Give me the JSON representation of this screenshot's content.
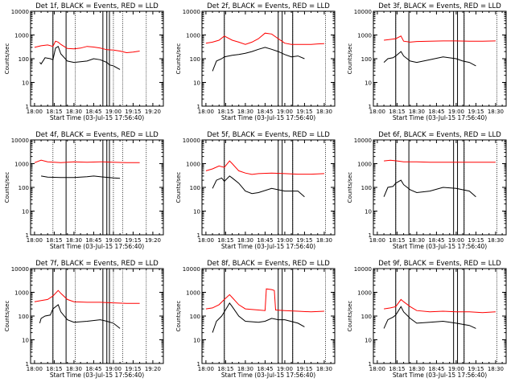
{
  "figure": {
    "title_template": "Det {det}, BLACK = Events, RED = LLD",
    "ylabel": "Counts/sec",
    "xlabel": "Start Time (03-Jul-15 17:56:40)",
    "colors": {
      "events": "#000000",
      "lld": "#ff0000",
      "frame": "#000000"
    }
  },
  "chart_data": [
    {
      "type": "line",
      "detector": "1f",
      "title": "Det 1f, BLACK = Events, RED = LLD",
      "xlabel": "Start Time (03-Jul-15 17:56:40)",
      "ylabel": "Counts/sec",
      "ylog": true,
      "ylim": [
        1,
        10000
      ],
      "x_ticks": [
        "18:00",
        "18:15",
        "18:30",
        "18:45",
        "19:00",
        "19:15",
        "19:20"
      ],
      "y_ticks": [
        "1",
        "10",
        "100",
        "1000",
        "10000"
      ],
      "vlines_solid": [
        "18:14",
        "18:24",
        "18:52",
        "18:55",
        "18:57"
      ],
      "vlines_dotted": [
        "18:14",
        "18:31",
        "18:57",
        "19:00",
        "19:07",
        "19:25"
      ],
      "series": [
        {
          "name": "LLD",
          "x": [
            "18:00",
            "18:05",
            "18:10",
            "18:14",
            "18:16",
            "18:18",
            "18:20",
            "18:25",
            "18:30",
            "18:35",
            "18:40",
            "18:45",
            "18:50",
            "18:55",
            "19:00",
            "19:05",
            "19:10",
            "19:15",
            "19:20"
          ],
          "y": [
            300,
            350,
            380,
            330,
            550,
            500,
            400,
            270,
            260,
            280,
            330,
            310,
            280,
            240,
            230,
            210,
            180,
            190,
            210
          ]
        },
        {
          "name": "Events",
          "x": [
            "18:04",
            "18:05",
            "18:08",
            "18:12",
            "18:14",
            "18:16",
            "18:18",
            "18:20",
            "18:25",
            "18:30",
            "18:35",
            "18:40",
            "18:45",
            "18:50",
            "18:55",
            "18:57",
            "19:00",
            "19:05"
          ],
          "y": [
            70,
            60,
            110,
            100,
            90,
            280,
            330,
            160,
            80,
            70,
            75,
            80,
            100,
            90,
            70,
            55,
            50,
            35
          ]
        }
      ]
    },
    {
      "type": "line",
      "detector": "2f",
      "title": "Det 2f, BLACK = Events, RED = LLD",
      "xlabel": "Start Time (03-Jul-15 17:56:40)",
      "ylabel": "Counts/sec",
      "ylog": true,
      "ylim": [
        1,
        10000
      ],
      "x_ticks": [
        "18:00",
        "18:15",
        "18:30",
        "18:45",
        "19:00",
        "19:15",
        "18:30"
      ],
      "y_ticks": [
        "1",
        "10",
        "100",
        "1000",
        "10000"
      ],
      "vlines_solid": [
        "18:14",
        "18:55",
        "18:58",
        "19:06"
      ],
      "vlines_dotted": [
        "18:14",
        "19:06",
        "19:31"
      ],
      "series": [
        {
          "name": "LLD",
          "x": [
            "18:00",
            "18:05",
            "18:10",
            "18:14",
            "18:20",
            "18:25",
            "18:30",
            "18:35",
            "18:40",
            "18:45",
            "18:50",
            "18:55",
            "19:00",
            "19:05",
            "19:10",
            "19:15",
            "19:20",
            "19:25",
            "19:30"
          ],
          "y": [
            450,
            500,
            600,
            900,
            600,
            500,
            400,
            500,
            700,
            1200,
            1100,
            700,
            450,
            400,
            400,
            400,
            400,
            420,
            430
          ]
        },
        {
          "name": "Events",
          "x": [
            "18:05",
            "18:08",
            "18:12",
            "18:14",
            "18:20",
            "18:25",
            "18:30",
            "18:35",
            "18:40",
            "18:45",
            "18:50",
            "18:55",
            "19:00",
            "19:05",
            "19:10",
            "19:15"
          ],
          "y": [
            30,
            80,
            100,
            120,
            140,
            150,
            170,
            200,
            250,
            300,
            250,
            200,
            150,
            120,
            130,
            100
          ]
        }
      ]
    },
    {
      "type": "line",
      "detector": "3f",
      "title": "Det 3f, BLACK = Events, RED = LLD",
      "xlabel": "Start Time (03-Jul-15 17:56:40)",
      "ylabel": "Counts/sec",
      "ylog": true,
      "ylim": [
        1,
        10000
      ],
      "x_ticks": [
        "18:00",
        "18:15",
        "18:30",
        "18:45",
        "19:00",
        "19:15",
        "18:30"
      ],
      "y_ticks": [
        "1",
        "10",
        "100",
        "1000",
        "10000"
      ],
      "vlines_solid": [
        "18:14",
        "18:24",
        "18:58",
        "19:01",
        "19:06"
      ],
      "vlines_dotted": [
        "18:14",
        "19:06",
        "19:31"
      ],
      "series": [
        {
          "name": "LLD",
          "x": [
            "18:05",
            "18:10",
            "18:14",
            "18:18",
            "18:20",
            "18:25",
            "18:30",
            "18:40",
            "18:50",
            "19:00",
            "19:10",
            "19:20",
            "19:30"
          ],
          "y": [
            600,
            650,
            700,
            900,
            550,
            500,
            530,
            550,
            560,
            560,
            550,
            550,
            560
          ]
        },
        {
          "name": "Events",
          "x": [
            "18:05",
            "18:08",
            "18:12",
            "18:14",
            "18:18",
            "18:20",
            "18:25",
            "18:30",
            "18:40",
            "18:50",
            "19:00",
            "19:05",
            "19:10",
            "19:15"
          ],
          "y": [
            70,
            100,
            110,
            130,
            200,
            130,
            80,
            70,
            90,
            120,
            100,
            80,
            70,
            50
          ]
        }
      ]
    },
    {
      "type": "line",
      "detector": "4f",
      "title": "Det 4f, BLACK = Events, RED = LLD",
      "xlabel": "Start Time (03-Jul-15 17:56:40)",
      "ylabel": "Counts/sec",
      "ylog": true,
      "ylim": [
        1,
        10000
      ],
      "x_ticks": [
        "18:00",
        "18:15",
        "18:30",
        "18:45",
        "19:00",
        "19:15",
        "19:20"
      ],
      "y_ticks": [
        "1",
        "10",
        "100",
        "1000",
        "10000"
      ],
      "vlines_solid": [
        "18:24",
        "18:52",
        "18:55",
        "18:57"
      ],
      "vlines_dotted": [
        "18:14",
        "18:31",
        "18:57",
        "19:00",
        "19:07",
        "19:25"
      ],
      "series": [
        {
          "name": "LLD",
          "x": [
            "18:00",
            "18:05",
            "18:10",
            "18:20",
            "18:30",
            "18:40",
            "18:50",
            "19:00",
            "19:10",
            "19:20"
          ],
          "y": [
            1100,
            1400,
            1200,
            1100,
            1200,
            1150,
            1200,
            1150,
            1100,
            1100
          ]
        },
        {
          "name": "Events",
          "x": [
            "18:05",
            "18:10",
            "18:20",
            "18:30",
            "18:40",
            "18:45",
            "18:50",
            "19:00",
            "19:05"
          ],
          "y": [
            300,
            270,
            260,
            260,
            280,
            300,
            280,
            250,
            240
          ]
        }
      ]
    },
    {
      "type": "line",
      "detector": "5f",
      "title": "Det 5f, BLACK = Events, RED = LLD",
      "xlabel": "Start Time (03-Jul-15 17:56:40)",
      "ylabel": "Counts/sec",
      "ylog": true,
      "ylim": [
        1,
        10000
      ],
      "x_ticks": [
        "18:00",
        "18:15",
        "18:30",
        "18:45",
        "19:00",
        "19:15",
        "18:30"
      ],
      "y_ticks": [
        "1",
        "10",
        "100",
        "1000",
        "10000"
      ],
      "vlines_solid": [
        "18:14",
        "18:55",
        "18:58",
        "19:06"
      ],
      "vlines_dotted": [
        "18:14",
        "19:06",
        "19:31"
      ],
      "series": [
        {
          "name": "LLD",
          "x": [
            "18:00",
            "18:05",
            "18:10",
            "18:14",
            "18:18",
            "18:20",
            "18:25",
            "18:30",
            "18:35",
            "18:40",
            "18:50",
            "19:00",
            "19:10",
            "19:20",
            "19:30"
          ],
          "y": [
            500,
            600,
            800,
            700,
            1300,
            1000,
            500,
            400,
            350,
            380,
            400,
            380,
            360,
            360,
            380
          ]
        },
        {
          "name": "Events",
          "x": [
            "18:05",
            "18:08",
            "18:12",
            "18:14",
            "18:18",
            "18:20",
            "18:25",
            "18:30",
            "18:35",
            "18:40",
            "18:50",
            "19:00",
            "19:10",
            "19:15"
          ],
          "y": [
            90,
            200,
            250,
            180,
            300,
            250,
            150,
            70,
            55,
            60,
            90,
            70,
            70,
            40
          ]
        }
      ]
    },
    {
      "type": "line",
      "detector": "6f",
      "title": "Det 6f, BLACK = Events, RED = LLD",
      "xlabel": "Start Time (03-Jul-15 17:56:40)",
      "ylabel": "Counts/sec",
      "ylog": true,
      "ylim": [
        1,
        10000
      ],
      "x_ticks": [
        "18:00",
        "18:15",
        "18:30",
        "18:45",
        "19:00",
        "19:15",
        "18:30"
      ],
      "y_ticks": [
        "1",
        "10",
        "100",
        "1000",
        "10000"
      ],
      "vlines_solid": [
        "18:14",
        "18:24",
        "18:58",
        "19:01",
        "19:06"
      ],
      "vlines_dotted": [
        "18:14",
        "19:06",
        "19:31"
      ],
      "series": [
        {
          "name": "LLD",
          "x": [
            "18:05",
            "18:10",
            "18:15",
            "18:20",
            "18:30",
            "18:40",
            "18:50",
            "19:00",
            "19:10",
            "19:20",
            "19:30"
          ],
          "y": [
            1300,
            1400,
            1300,
            1200,
            1200,
            1150,
            1150,
            1150,
            1150,
            1150,
            1150
          ]
        },
        {
          "name": "Events",
          "x": [
            "18:05",
            "18:08",
            "18:12",
            "18:14",
            "18:18",
            "18:20",
            "18:25",
            "18:30",
            "18:40",
            "18:50",
            "19:00",
            "19:10",
            "19:15"
          ],
          "y": [
            40,
            100,
            110,
            150,
            200,
            130,
            80,
            60,
            70,
            100,
            90,
            70,
            40
          ]
        }
      ]
    },
    {
      "type": "line",
      "detector": "7f",
      "title": "Det 7f, BLACK = Events, RED = LLD",
      "xlabel": "Start Time (03-Jul-15 17:56:40)",
      "ylabel": "Counts/sec",
      "ylog": true,
      "ylim": [
        1,
        10000
      ],
      "x_ticks": [
        "18:00",
        "18:15",
        "18:30",
        "18:45",
        "19:00",
        "19:15",
        "19:20"
      ],
      "y_ticks": [
        "1",
        "10",
        "100",
        "1000",
        "10000"
      ],
      "vlines_solid": [
        "18:14",
        "18:24",
        "18:52",
        "18:55",
        "18:57"
      ],
      "vlines_dotted": [
        "18:14",
        "18:31",
        "18:57",
        "19:00",
        "19:07",
        "19:25"
      ],
      "series": [
        {
          "name": "LLD",
          "x": [
            "18:00",
            "18:05",
            "18:10",
            "18:14",
            "18:18",
            "18:20",
            "18:25",
            "18:30",
            "18:40",
            "18:50",
            "19:00",
            "19:10",
            "19:20"
          ],
          "y": [
            400,
            450,
            500,
            700,
            1200,
            900,
            500,
            400,
            380,
            380,
            360,
            340,
            340
          ]
        },
        {
          "name": "Events",
          "x": [
            "18:04",
            "18:05",
            "18:08",
            "18:12",
            "18:14",
            "18:18",
            "18:20",
            "18:25",
            "18:30",
            "18:40",
            "18:50",
            "18:55",
            "19:00",
            "19:05"
          ],
          "y": [
            50,
            80,
            100,
            110,
            200,
            300,
            150,
            70,
            55,
            60,
            70,
            60,
            50,
            30
          ]
        }
      ]
    },
    {
      "type": "line",
      "detector": "8f",
      "title": "Det 8f, BLACK = Events, RED = LLD",
      "xlabel": "Start Time (03-Jul-15 17:56:40)",
      "ylabel": "Counts/sec",
      "ylog": true,
      "ylim": [
        1,
        10000
      ],
      "x_ticks": [
        "18:00",
        "18:15",
        "18:30",
        "18:45",
        "19:00",
        "19:15",
        "18:30"
      ],
      "y_ticks": [
        "1",
        "10",
        "100",
        "1000",
        "10000"
      ],
      "vlines_solid": [
        "18:14",
        "18:55",
        "18:58",
        "19:06"
      ],
      "vlines_dotted": [
        "18:14",
        "19:06",
        "19:31"
      ],
      "series": [
        {
          "name": "LLD",
          "x": [
            "18:00",
            "18:05",
            "18:10",
            "18:14",
            "18:18",
            "18:20",
            "18:25",
            "18:30",
            "18:40",
            "18:45",
            "18:46",
            "18:50",
            "18:52",
            "18:53",
            "19:00",
            "19:10",
            "19:20",
            "19:30"
          ],
          "y": [
            200,
            220,
            300,
            500,
            800,
            600,
            300,
            200,
            180,
            170,
            1400,
            1300,
            1200,
            180,
            170,
            160,
            150,
            160
          ]
        },
        {
          "name": "Events",
          "x": [
            "18:05",
            "18:08",
            "18:12",
            "18:14",
            "18:18",
            "18:20",
            "18:25",
            "18:30",
            "18:40",
            "18:45",
            "18:50",
            "18:55",
            "19:00",
            "19:10",
            "19:15"
          ],
          "y": [
            20,
            60,
            100,
            150,
            350,
            250,
            100,
            60,
            55,
            60,
            80,
            70,
            70,
            50,
            35
          ]
        }
      ]
    },
    {
      "type": "line",
      "detector": "9f",
      "title": "Det 9f, BLACK = Events, RED = LLD",
      "xlabel": "Start Time (03-Jul-15 17:56:40)",
      "ylabel": "Counts/sec",
      "ylog": true,
      "ylim": [
        1,
        10000
      ],
      "x_ticks": [
        "18:00",
        "18:15",
        "18:30",
        "18:45",
        "19:00",
        "19:15",
        "18:30"
      ],
      "y_ticks": [
        "1",
        "10",
        "100",
        "1000",
        "10000"
      ],
      "vlines_solid": [
        "18:14",
        "18:24",
        "18:58",
        "19:01",
        "19:06"
      ],
      "vlines_dotted": [
        "18:14",
        "19:06",
        "19:31"
      ],
      "series": [
        {
          "name": "LLD",
          "x": [
            "18:05",
            "18:10",
            "18:14",
            "18:18",
            "18:20",
            "18:25",
            "18:30",
            "18:40",
            "18:50",
            "19:00",
            "19:10",
            "19:20",
            "19:30"
          ],
          "y": [
            200,
            220,
            250,
            500,
            400,
            250,
            170,
            150,
            160,
            150,
            150,
            140,
            150
          ]
        },
        {
          "name": "Events",
          "x": [
            "18:05",
            "18:08",
            "18:12",
            "18:14",
            "18:18",
            "18:20",
            "18:25",
            "18:30",
            "18:40",
            "18:50",
            "19:00",
            "19:10",
            "19:15"
          ],
          "y": [
            30,
            70,
            90,
            110,
            250,
            150,
            80,
            50,
            55,
            60,
            50,
            40,
            30
          ]
        }
      ]
    }
  ]
}
